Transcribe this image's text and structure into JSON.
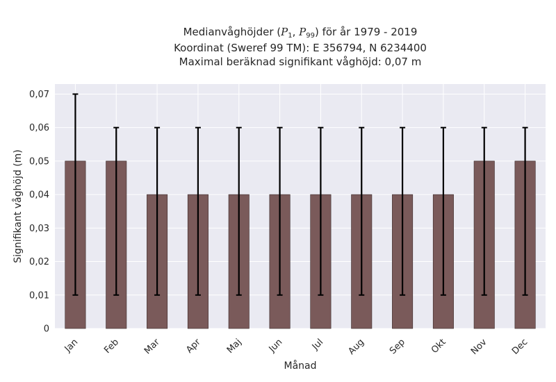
{
  "chart_data": {
    "type": "bar",
    "title_lines": [
      "Medianvåghöjder (P1, P99) för år 1979 - 2019",
      "Koordinat (Sweref 99 TM): E 356794, N 6234400",
      "Maximal beräknad signifikant våghöjd: 0,07 m"
    ],
    "xlabel": "Månad",
    "ylabel": "Signifikant våghöjd (m)",
    "categories": [
      "Jan",
      "Feb",
      "Mar",
      "Apr",
      "Maj",
      "Jun",
      "Jul",
      "Aug",
      "Sep",
      "Okt",
      "Nov",
      "Dec"
    ],
    "values": [
      0.05,
      0.05,
      0.04,
      0.04,
      0.04,
      0.04,
      0.04,
      0.04,
      0.04,
      0.04,
      0.05,
      0.05
    ],
    "error_low": [
      0.01,
      0.01,
      0.01,
      0.01,
      0.01,
      0.01,
      0.01,
      0.01,
      0.01,
      0.01,
      0.01,
      0.01
    ],
    "error_high": [
      0.07,
      0.06,
      0.06,
      0.06,
      0.06,
      0.06,
      0.06,
      0.06,
      0.06,
      0.06,
      0.06,
      0.06
    ],
    "ylim": [
      0,
      0.073
    ],
    "yticks": [
      0,
      0.01,
      0.02,
      0.03,
      0.04,
      0.05,
      0.06,
      0.07
    ],
    "ytick_labels": [
      "0",
      "0,01",
      "0,02",
      "0,03",
      "0,04",
      "0,05",
      "0,06",
      "0,07"
    ],
    "grid": true,
    "colors": {
      "bar": "#7a5a5a",
      "bar_edge": "#3a2a2a",
      "error": "#000000",
      "plot_bg": "#eaeaf2",
      "grid": "#ffffff"
    }
  }
}
